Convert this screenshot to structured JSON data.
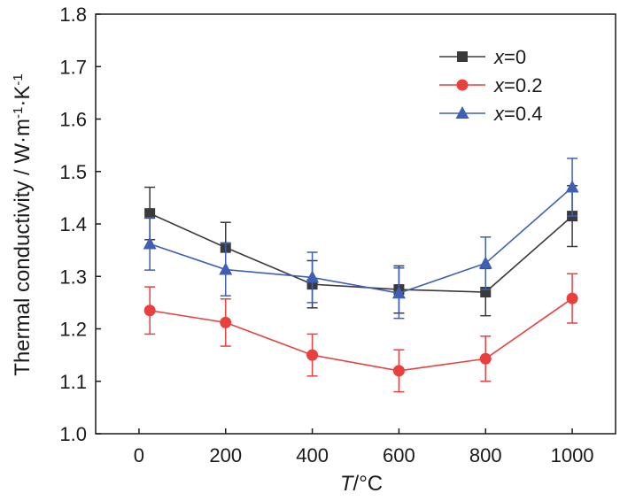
{
  "chart_data": {
    "type": "line",
    "title": "",
    "xlabel": {
      "var": "T",
      "unit": "/°C"
    },
    "ylabel": {
      "text": "Thermal conductivity / W·m",
      "sup1": "-1",
      "mid": "·K",
      "sup2": "-1"
    },
    "xlim": [
      -100,
      1100
    ],
    "ylim": [
      1.0,
      1.8
    ],
    "xticks": [
      0,
      200,
      400,
      600,
      800,
      1000
    ],
    "yticks": [
      1.0,
      1.1,
      1.2,
      1.3,
      1.4,
      1.5,
      1.6,
      1.7,
      1.8
    ],
    "ytick_labels": [
      "1.0",
      "1.1",
      "1.2",
      "1.3",
      "1.4",
      "1.5",
      "1.6",
      "1.7",
      "1.8"
    ],
    "grid": false,
    "legend_position": "top-right",
    "series": [
      {
        "name": "x=0",
        "legend_var": "x",
        "legend_val": "=0",
        "color": "#3a3a3a",
        "marker": "square",
        "x": [
          25,
          200,
          400,
          600,
          800,
          1000
        ],
        "y": [
          1.42,
          1.355,
          1.285,
          1.275,
          1.27,
          1.415
        ],
        "err": [
          0.05,
          0.048,
          0.045,
          0.045,
          0.045,
          0.058
        ]
      },
      {
        "name": "x=0.2",
        "legend_var": "x",
        "legend_val": "=0.2",
        "color": "#e8403f",
        "marker": "circle",
        "x": [
          25,
          200,
          400,
          600,
          800,
          1000
        ],
        "y": [
          1.235,
          1.212,
          1.15,
          1.12,
          1.143,
          1.258
        ],
        "err": [
          0.045,
          0.045,
          0.04,
          0.04,
          0.043,
          0.047
        ]
      },
      {
        "name": "x=0.4",
        "legend_var": "x",
        "legend_val": "=0.4",
        "color": "#3f5fb3",
        "marker": "triangle",
        "x": [
          25,
          200,
          400,
          600,
          800,
          1000
        ],
        "y": [
          1.362,
          1.313,
          1.298,
          1.268,
          1.325,
          1.47
        ],
        "err": [
          0.05,
          0.05,
          0.048,
          0.048,
          0.05,
          0.055
        ]
      }
    ]
  }
}
